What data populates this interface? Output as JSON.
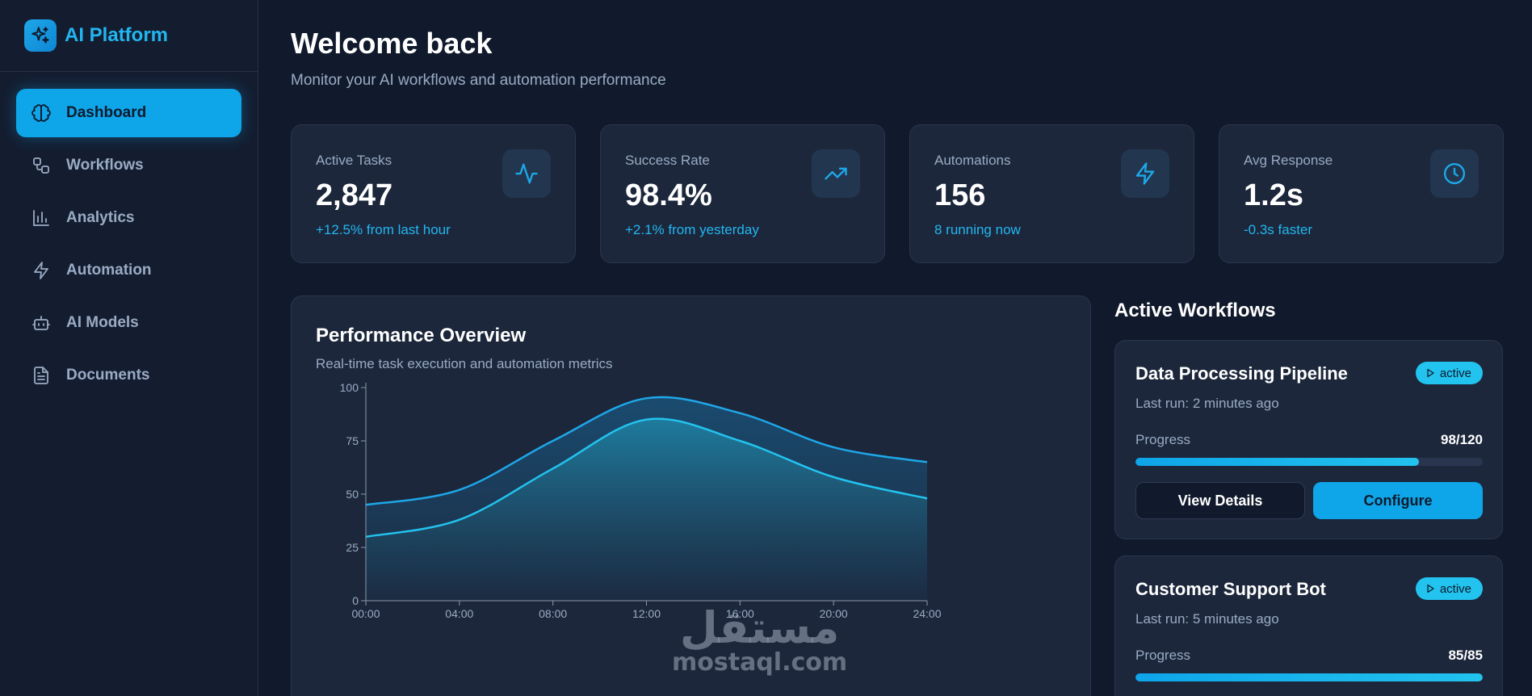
{
  "brand": {
    "name": "AI Platform",
    "icon": "sparkles-icon"
  },
  "sidebar": {
    "items": [
      {
        "label": "Dashboard",
        "icon": "brain-icon",
        "active": true
      },
      {
        "label": "Workflows",
        "icon": "workflow-icon",
        "active": false
      },
      {
        "label": "Analytics",
        "icon": "bar-chart-icon",
        "active": false
      },
      {
        "label": "Automation",
        "icon": "lightning-icon",
        "active": false
      },
      {
        "label": "AI Models",
        "icon": "bot-icon",
        "active": false
      },
      {
        "label": "Documents",
        "icon": "document-icon",
        "active": false
      }
    ]
  },
  "header": {
    "title": "Welcome back",
    "subtitle": "Monitor your AI workflows and automation performance"
  },
  "stats": [
    {
      "label": "Active Tasks",
      "value": "2,847",
      "change": "+12.5% from last hour",
      "icon": "activity-icon"
    },
    {
      "label": "Success Rate",
      "value": "98.4%",
      "change": "+2.1% from yesterday",
      "icon": "trending-up-icon"
    },
    {
      "label": "Automations",
      "value": "156",
      "change": "8 running now",
      "icon": "lightning-icon"
    },
    {
      "label": "Avg Response",
      "value": "1.2s",
      "change": "-0.3s faster",
      "icon": "clock-icon"
    }
  ],
  "performance": {
    "title": "Performance Overview",
    "subtitle": "Real-time task execution and automation metrics"
  },
  "chart_data": {
    "type": "area",
    "x": [
      "00:00",
      "04:00",
      "08:00",
      "12:00",
      "16:00",
      "20:00",
      "24:00"
    ],
    "series": [
      {
        "values": [
          45,
          52,
          75,
          95,
          88,
          72,
          65
        ]
      },
      {
        "values": [
          30,
          38,
          62,
          85,
          75,
          58,
          48
        ]
      }
    ],
    "yticks": [
      0,
      25,
      50,
      75,
      100
    ],
    "ylim": [
      0,
      100
    ],
    "grid": false,
    "colors": [
      "#1ea7e8",
      "#22c3ee"
    ]
  },
  "workflows": {
    "heading": "Active Workflows",
    "items": [
      {
        "name": "Data Processing Pipeline",
        "last_run": "Last run: 2 minutes ago",
        "status": "active",
        "progress_label": "Progress",
        "progress_text": "98/120",
        "progress_fraction": 0.8167,
        "view_label": "View Details",
        "configure_label": "Configure"
      },
      {
        "name": "Customer Support Bot",
        "last_run": "Last run: 5 minutes ago",
        "status": "active",
        "progress_label": "Progress",
        "progress_text": "85/85",
        "progress_fraction": 1.0
      }
    ]
  },
  "watermark": {
    "arabic": "مستقل",
    "latin": "mostaql.com"
  }
}
